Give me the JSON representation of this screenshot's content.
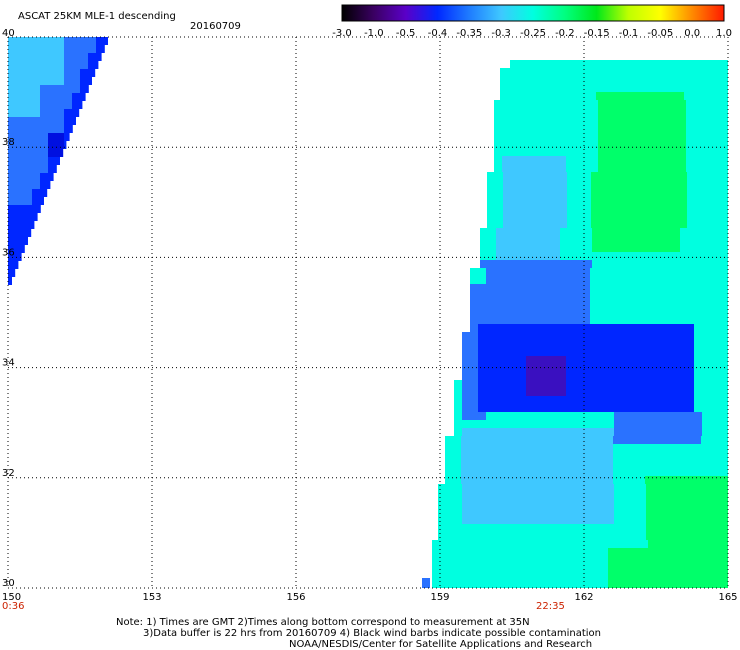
{
  "header": {
    "product": "ASCAT 25KM MLE-1 descending",
    "date": "20160709"
  },
  "colorbar": {
    "ticks": [
      "-3.0",
      "-1.0",
      "-0.5",
      "-0.4",
      "-0.35",
      "-0.3",
      "-0.25",
      "-0.2",
      "-0.15",
      "-0.1",
      "-0.05",
      "0.0",
      "1.0"
    ],
    "colors": [
      "#000000",
      "#3a0062",
      "#5a00c8",
      "#0028ff",
      "#1f7cff",
      "#3fc8ff",
      "#00ffe0",
      "#00ff80",
      "#00e81a",
      "#bfff00",
      "#ffff00",
      "#ff8a00",
      "#ff1a00"
    ]
  },
  "axes": {
    "lat_ticks": [
      "40",
      "38",
      "36",
      "34",
      "32",
      "30"
    ],
    "lon_ticks": [
      "150",
      "153",
      "156",
      "159",
      "162",
      "165"
    ]
  },
  "pass_times": [
    {
      "label": "0:36",
      "lon": 150
    },
    {
      "label": "22:35",
      "lon": 161.3
    }
  ],
  "notes": {
    "line1": "Note: 1) Times are GMT 2)Times along bottom correspond to measurement at 35N",
    "line2": "3)Data buffer is 22 hrs from 20160709 4) Black wind barbs indicate possible contamination",
    "line3": "NOAA/NESDIS/Center for Satellite Applications and Research"
  },
  "legend_colors": {
    "deep_blue": "#0026ff",
    "blue": "#2a72ff",
    "sky": "#3fc8ff",
    "cyan": "#00ffe0",
    "green": "#00ff6a"
  }
}
